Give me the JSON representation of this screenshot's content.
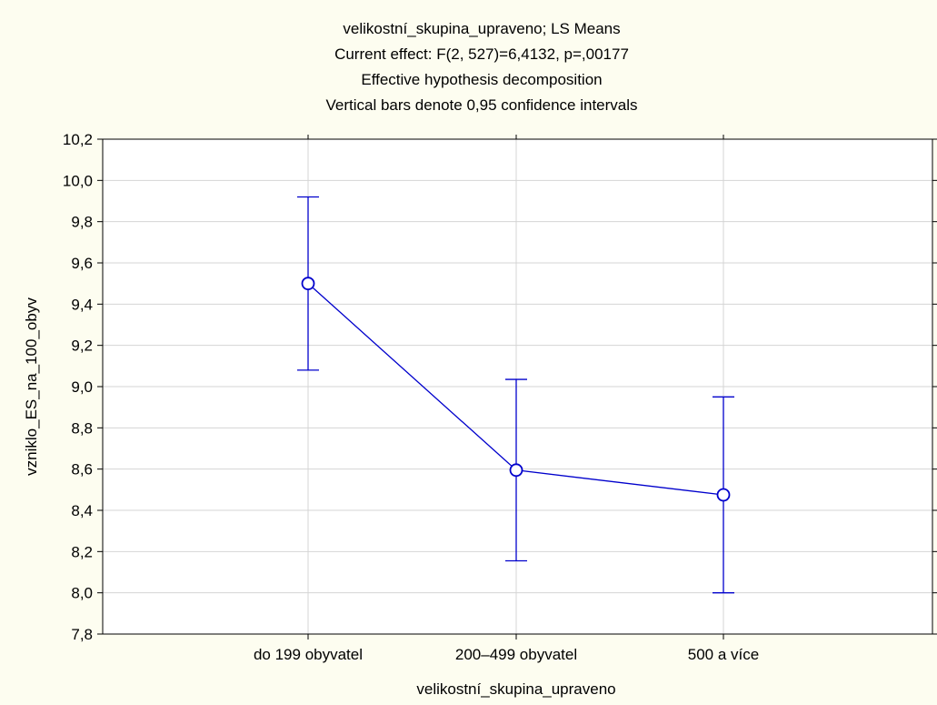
{
  "chart_data": {
    "type": "line",
    "title_lines": [
      "velikostní_skupina_upraveno; LS Means",
      "Current effect: F(2, 527)=6,4132, p=,00177",
      "Effective hypothesis decomposition",
      "Vertical bars denote 0,95 confidence intervals"
    ],
    "xlabel": "velikostní_skupina_upraveno",
    "ylabel": "vzniklo_ES_na_100_obyv",
    "categories": [
      "do 199 obyvatel",
      "200–499 obyvatel",
      "500 a více"
    ],
    "series": [
      {
        "values": [
          9.5,
          8.595,
          8.475
        ],
        "ci_lower": [
          9.08,
          8.155,
          8.0
        ],
        "ci_upper": [
          9.92,
          9.035,
          8.95
        ]
      }
    ],
    "ylim": [
      7.8,
      10.2
    ],
    "yticks": [
      7.8,
      8.0,
      8.2,
      8.4,
      8.6,
      8.8,
      9.0,
      9.2,
      9.4,
      9.6,
      9.8,
      10.0,
      10.2
    ],
    "ytick_labels": [
      "7,8",
      "8,0",
      "8,2",
      "8,4",
      "8,6",
      "8,8",
      "9,0",
      "9,2",
      "9,4",
      "9,6",
      "9,8",
      "10,0",
      "10,2"
    ],
    "grid": true,
    "series_color": "#0000cc",
    "grid_color": "#d4d4d4",
    "background_color": "#fdfdf0",
    "plot_background_color": "#ffffff"
  }
}
